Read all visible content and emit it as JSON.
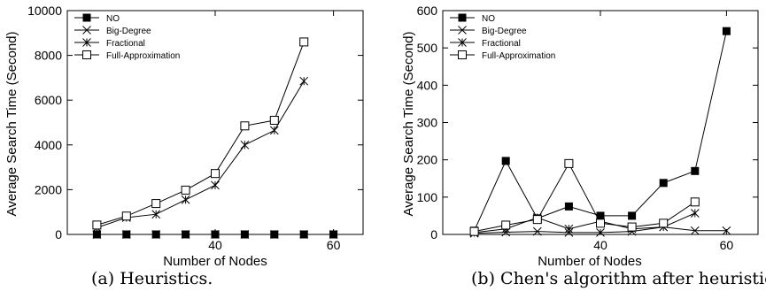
{
  "chart_data": [
    {
      "type": "line",
      "caption": "(a) Heuristics.",
      "xlabel": "Number of Nodes",
      "ylabel": "Average Search Time (Second)",
      "xlim": [
        15,
        65
      ],
      "ylim": [
        0,
        10000
      ],
      "xticks": [
        40,
        60
      ],
      "yticks": [
        0,
        2000,
        4000,
        6000,
        8000,
        10000
      ],
      "legend_position": "top-left",
      "grid": false,
      "series": [
        {
          "name": "NO",
          "marker": "filled-square",
          "x": [
            20,
            25,
            30,
            35,
            40,
            45,
            50,
            55,
            60
          ],
          "y": [
            0,
            0,
            0,
            0,
            0,
            0,
            0,
            0,
            0
          ]
        },
        {
          "name": "Big-Degree",
          "marker": "x",
          "x": [
            20,
            25,
            30,
            35,
            40,
            45,
            50,
            55,
            60
          ],
          "y": [
            0,
            0,
            0,
            0,
            0,
            0,
            0,
            0,
            0
          ]
        },
        {
          "name": "Fractional",
          "marker": "asterisk",
          "x": [
            20,
            25,
            30,
            35,
            40,
            45,
            50,
            55
          ],
          "y": [
            300,
            750,
            900,
            1550,
            2200,
            4000,
            4650,
            6850
          ]
        },
        {
          "name": "Full-Approximation",
          "marker": "open-square",
          "x": [
            20,
            25,
            30,
            35,
            40,
            45,
            50,
            55
          ],
          "y": [
            420,
            820,
            1380,
            1980,
            2720,
            4850,
            5100,
            8600
          ]
        }
      ]
    },
    {
      "type": "line",
      "caption": "(b) Chen's algorithm after heuristic.",
      "xlabel": "Number of Nodes",
      "ylabel": "Average Search Time (Second)",
      "xlim": [
        15,
        65
      ],
      "ylim": [
        0,
        600
      ],
      "xticks": [
        40,
        60
      ],
      "yticks": [
        0,
        100,
        200,
        300,
        400,
        500,
        600
      ],
      "legend_position": "top-left",
      "grid": false,
      "series": [
        {
          "name": "NO",
          "marker": "filled-square",
          "x": [
            20,
            25,
            30,
            35,
            40,
            45,
            50,
            55,
            60
          ],
          "y": [
            10,
            197,
            43,
            75,
            50,
            50,
            138,
            170,
            545
          ]
        },
        {
          "name": "Big-Degree",
          "marker": "x",
          "x": [
            20,
            25,
            30,
            35,
            40,
            45,
            50,
            55,
            60
          ],
          "y": [
            3,
            6,
            8,
            5,
            5,
            8,
            20,
            10,
            10
          ]
        },
        {
          "name": "Fractional",
          "marker": "asterisk",
          "x": [
            20,
            25,
            30,
            35,
            40,
            45,
            50,
            55
          ],
          "y": [
            5,
            15,
            45,
            15,
            35,
            15,
            20,
            57
          ]
        },
        {
          "name": "Full-Approximation",
          "marker": "open-square",
          "x": [
            20,
            25,
            30,
            35,
            40,
            45,
            50,
            55
          ],
          "y": [
            8,
            25,
            40,
            190,
            30,
            20,
            30,
            87
          ]
        }
      ]
    }
  ]
}
